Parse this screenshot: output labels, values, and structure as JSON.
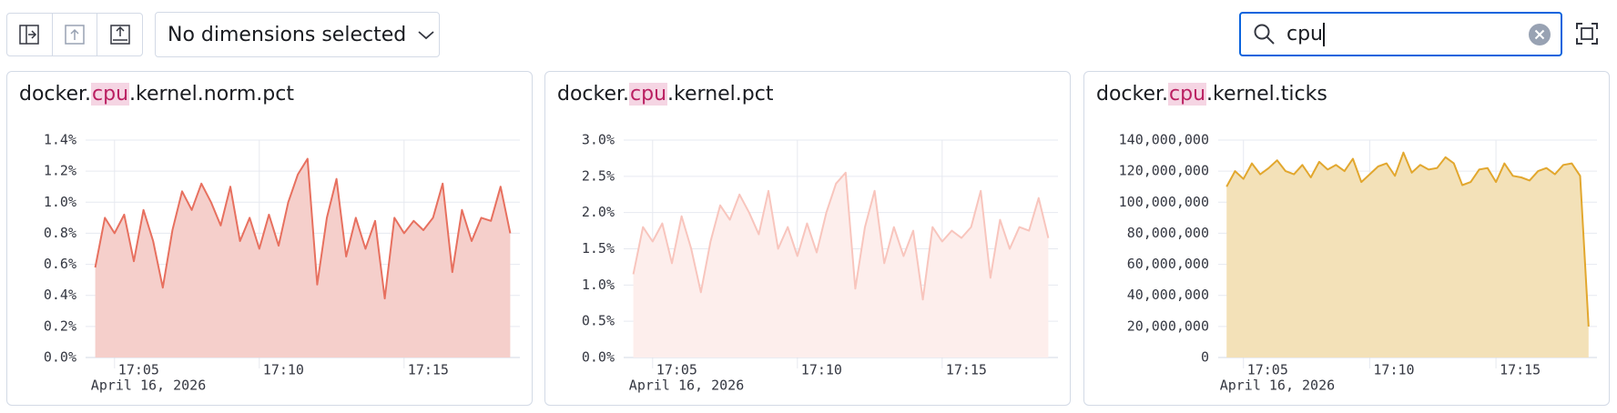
{
  "toolbar": {
    "dimension_select": "No dimensions selected",
    "search": "cpu"
  },
  "chart_data": [
    {
      "type": "area",
      "title": "docker.cpu.kernel.norm.pct",
      "xlabel": "April 16, 2026",
      "line_color": "#e7705f",
      "fill_color": "#f5cfcb",
      "x": [
        "17:04:20",
        "17:04:40",
        "17:05:00",
        "17:05:20",
        "17:05:40",
        "17:06:00",
        "17:06:20",
        "17:06:40",
        "17:07:00",
        "17:07:20",
        "17:07:40",
        "17:08:00",
        "17:08:20",
        "17:08:40",
        "17:09:00",
        "17:09:20",
        "17:09:40",
        "17:10:00",
        "17:10:20",
        "17:10:40",
        "17:11:00",
        "17:11:20",
        "17:11:40",
        "17:12:00",
        "17:12:20",
        "17:12:40",
        "17:13:00",
        "17:13:20",
        "17:13:40",
        "17:14:00",
        "17:14:20",
        "17:14:40",
        "17:15:00",
        "17:15:20",
        "17:15:40",
        "17:16:00",
        "17:16:20",
        "17:16:40",
        "17:17:00",
        "17:17:20",
        "17:17:40",
        "17:18:00",
        "17:18:20",
        "17:18:40"
      ],
      "values": [
        0.58,
        0.9,
        0.8,
        0.92,
        0.62,
        0.95,
        0.75,
        0.45,
        0.82,
        1.07,
        0.95,
        1.12,
        1.0,
        0.85,
        1.1,
        0.75,
        0.9,
        0.7,
        0.92,
        0.72,
        1.0,
        1.18,
        1.28,
        0.47,
        0.9,
        1.15,
        0.65,
        0.9,
        0.7,
        0.88,
        0.38,
        0.9,
        0.8,
        0.88,
        0.82,
        0.9,
        1.12,
        0.55,
        0.95,
        0.75,
        0.9,
        0.88,
        1.1,
        0.8
      ],
      "xlim": [
        "17:04:00",
        "17:19:00"
      ],
      "xticks": [
        "17:05",
        "17:10",
        "17:15"
      ],
      "ylim": [
        0,
        1.4
      ],
      "yticks": [
        {
          "value": 0,
          "label": "0.0%"
        },
        {
          "value": 0.2,
          "label": "0.2%"
        },
        {
          "value": 0.4,
          "label": "0.4%"
        },
        {
          "value": 0.6,
          "label": "0.6%"
        },
        {
          "value": 0.8,
          "label": "0.8%"
        },
        {
          "value": 1.0,
          "label": "1.0%"
        },
        {
          "value": 1.2,
          "label": "1.2%"
        },
        {
          "value": 1.4,
          "label": "1.4%"
        }
      ],
      "grid": true
    },
    {
      "type": "area",
      "title": "docker.cpu.kernel.pct",
      "xlabel": "April 16, 2026",
      "line_color": "#f8c5bd",
      "fill_color": "#fdeeec",
      "x": [
        "17:04:20",
        "17:04:40",
        "17:05:00",
        "17:05:20",
        "17:05:40",
        "17:06:00",
        "17:06:20",
        "17:06:40",
        "17:07:00",
        "17:07:20",
        "17:07:40",
        "17:08:00",
        "17:08:20",
        "17:08:40",
        "17:09:00",
        "17:09:20",
        "17:09:40",
        "17:10:00",
        "17:10:20",
        "17:10:40",
        "17:11:00",
        "17:11:20",
        "17:11:40",
        "17:12:00",
        "17:12:20",
        "17:12:40",
        "17:13:00",
        "17:13:20",
        "17:13:40",
        "17:14:00",
        "17:14:20",
        "17:14:40",
        "17:15:00",
        "17:15:20",
        "17:15:40",
        "17:16:00",
        "17:16:20",
        "17:16:40",
        "17:17:00",
        "17:17:20",
        "17:17:40",
        "17:18:00",
        "17:18:20",
        "17:18:40"
      ],
      "values": [
        1.15,
        1.8,
        1.6,
        1.85,
        1.3,
        1.95,
        1.5,
        0.9,
        1.6,
        2.1,
        1.9,
        2.25,
        2.0,
        1.7,
        2.3,
        1.5,
        1.8,
        1.4,
        1.85,
        1.45,
        2.0,
        2.4,
        2.55,
        0.95,
        1.8,
        2.3,
        1.3,
        1.8,
        1.4,
        1.75,
        0.8,
        1.8,
        1.6,
        1.75,
        1.65,
        1.8,
        2.3,
        1.1,
        1.9,
        1.5,
        1.8,
        1.75,
        2.2,
        1.65
      ],
      "xlim": [
        "17:04:00",
        "17:19:00"
      ],
      "xticks": [
        "17:05",
        "17:10",
        "17:15"
      ],
      "ylim": [
        0,
        3.0
      ],
      "yticks": [
        {
          "value": 0,
          "label": "0.0%"
        },
        {
          "value": 0.5,
          "label": "0.5%"
        },
        {
          "value": 1.0,
          "label": "1.0%"
        },
        {
          "value": 1.5,
          "label": "1.5%"
        },
        {
          "value": 2.0,
          "label": "2.0%"
        },
        {
          "value": 2.5,
          "label": "2.5%"
        },
        {
          "value": 3.0,
          "label": "3.0%"
        }
      ],
      "grid": true
    },
    {
      "type": "area",
      "title": "docker.cpu.kernel.ticks",
      "xlabel": "April 16, 2026",
      "line_color": "#e2a72e",
      "fill_color": "#f3e1b8",
      "x": [
        "17:04:20",
        "17:04:40",
        "17:05:00",
        "17:05:20",
        "17:05:40",
        "17:06:00",
        "17:06:20",
        "17:06:40",
        "17:07:00",
        "17:07:20",
        "17:07:40",
        "17:08:00",
        "17:08:20",
        "17:08:40",
        "17:09:00",
        "17:09:20",
        "17:09:40",
        "17:10:00",
        "17:10:20",
        "17:10:40",
        "17:11:00",
        "17:11:20",
        "17:11:40",
        "17:12:00",
        "17:12:20",
        "17:12:40",
        "17:13:00",
        "17:13:20",
        "17:13:40",
        "17:14:00",
        "17:14:20",
        "17:14:40",
        "17:15:00",
        "17:15:20",
        "17:15:40",
        "17:16:00",
        "17:16:20",
        "17:16:40",
        "17:17:00",
        "17:17:20",
        "17:17:40",
        "17:18:00",
        "17:18:20",
        "17:18:40"
      ],
      "values": [
        110000000,
        120000000,
        115000000,
        125000000,
        118000000,
        122000000,
        127000000,
        120000000,
        118000000,
        124000000,
        116000000,
        126000000,
        121000000,
        124000000,
        120000000,
        128000000,
        113000000,
        118000000,
        123000000,
        125000000,
        117000000,
        132000000,
        119000000,
        124000000,
        121000000,
        122000000,
        129000000,
        125000000,
        111000000,
        113000000,
        121000000,
        122000000,
        113000000,
        125000000,
        117000000,
        116000000,
        114000000,
        120000000,
        122000000,
        118000000,
        124000000,
        125000000,
        117000000,
        20000000
      ],
      "xlim": [
        "17:04:00",
        "17:19:00"
      ],
      "xticks": [
        "17:05",
        "17:10",
        "17:15"
      ],
      "ylim": [
        0,
        140000000
      ],
      "yticks": [
        0,
        {
          "value": 20000000,
          "label": "20,000,000"
        },
        {
          "value": 40000000,
          "label": "40,000,000"
        },
        {
          "value": 60000000,
          "label": "60,000,000"
        },
        {
          "value": 80000000,
          "label": "80,000,000"
        },
        {
          "value": 100000000,
          "label": "100,000,000"
        },
        {
          "value": 120000000,
          "label": "120,000,000"
        },
        {
          "value": 140000000,
          "label": "140,000,000"
        }
      ],
      "grid": true
    }
  ]
}
